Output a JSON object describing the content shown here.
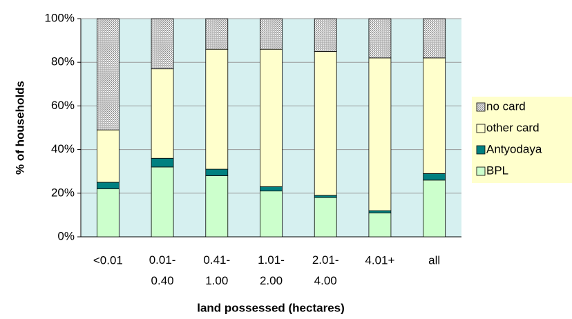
{
  "chart_data": {
    "type": "stacked_bar",
    "xlabel": "land possessed (hectares)",
    "ylabel": "% of households",
    "categories": [
      "<0.01",
      "0.01- 0.40",
      "0.41- 1.00",
      "1.01- 2.00",
      "2.01- 4.00",
      "4.01+",
      "all"
    ],
    "series": [
      {
        "name": "BPL",
        "color": "#ccffcc",
        "values": [
          22,
          32,
          28,
          21,
          18,
          11,
          26
        ]
      },
      {
        "name": "Antyodaya",
        "color": "#008080",
        "values": [
          3,
          4,
          3,
          2,
          1,
          1,
          3
        ]
      },
      {
        "name": "other card",
        "color": "#ffffcc",
        "values": [
          24,
          41,
          55,
          63,
          66,
          70,
          53
        ]
      },
      {
        "name": "no card",
        "color": "#c0c0c0",
        "values": [
          51,
          23,
          14,
          14,
          15,
          18,
          18
        ]
      }
    ],
    "ylim": [
      0,
      100
    ],
    "yticks": [
      {
        "value": 0,
        "label": "0%"
      },
      {
        "value": 20,
        "label": "20%"
      },
      {
        "value": 40,
        "label": "40%"
      },
      {
        "value": 60,
        "label": "60%"
      },
      {
        "value": 80,
        "label": "80%"
      },
      {
        "value": 100,
        "label": "100%"
      }
    ],
    "grid": true,
    "legend": "right"
  }
}
